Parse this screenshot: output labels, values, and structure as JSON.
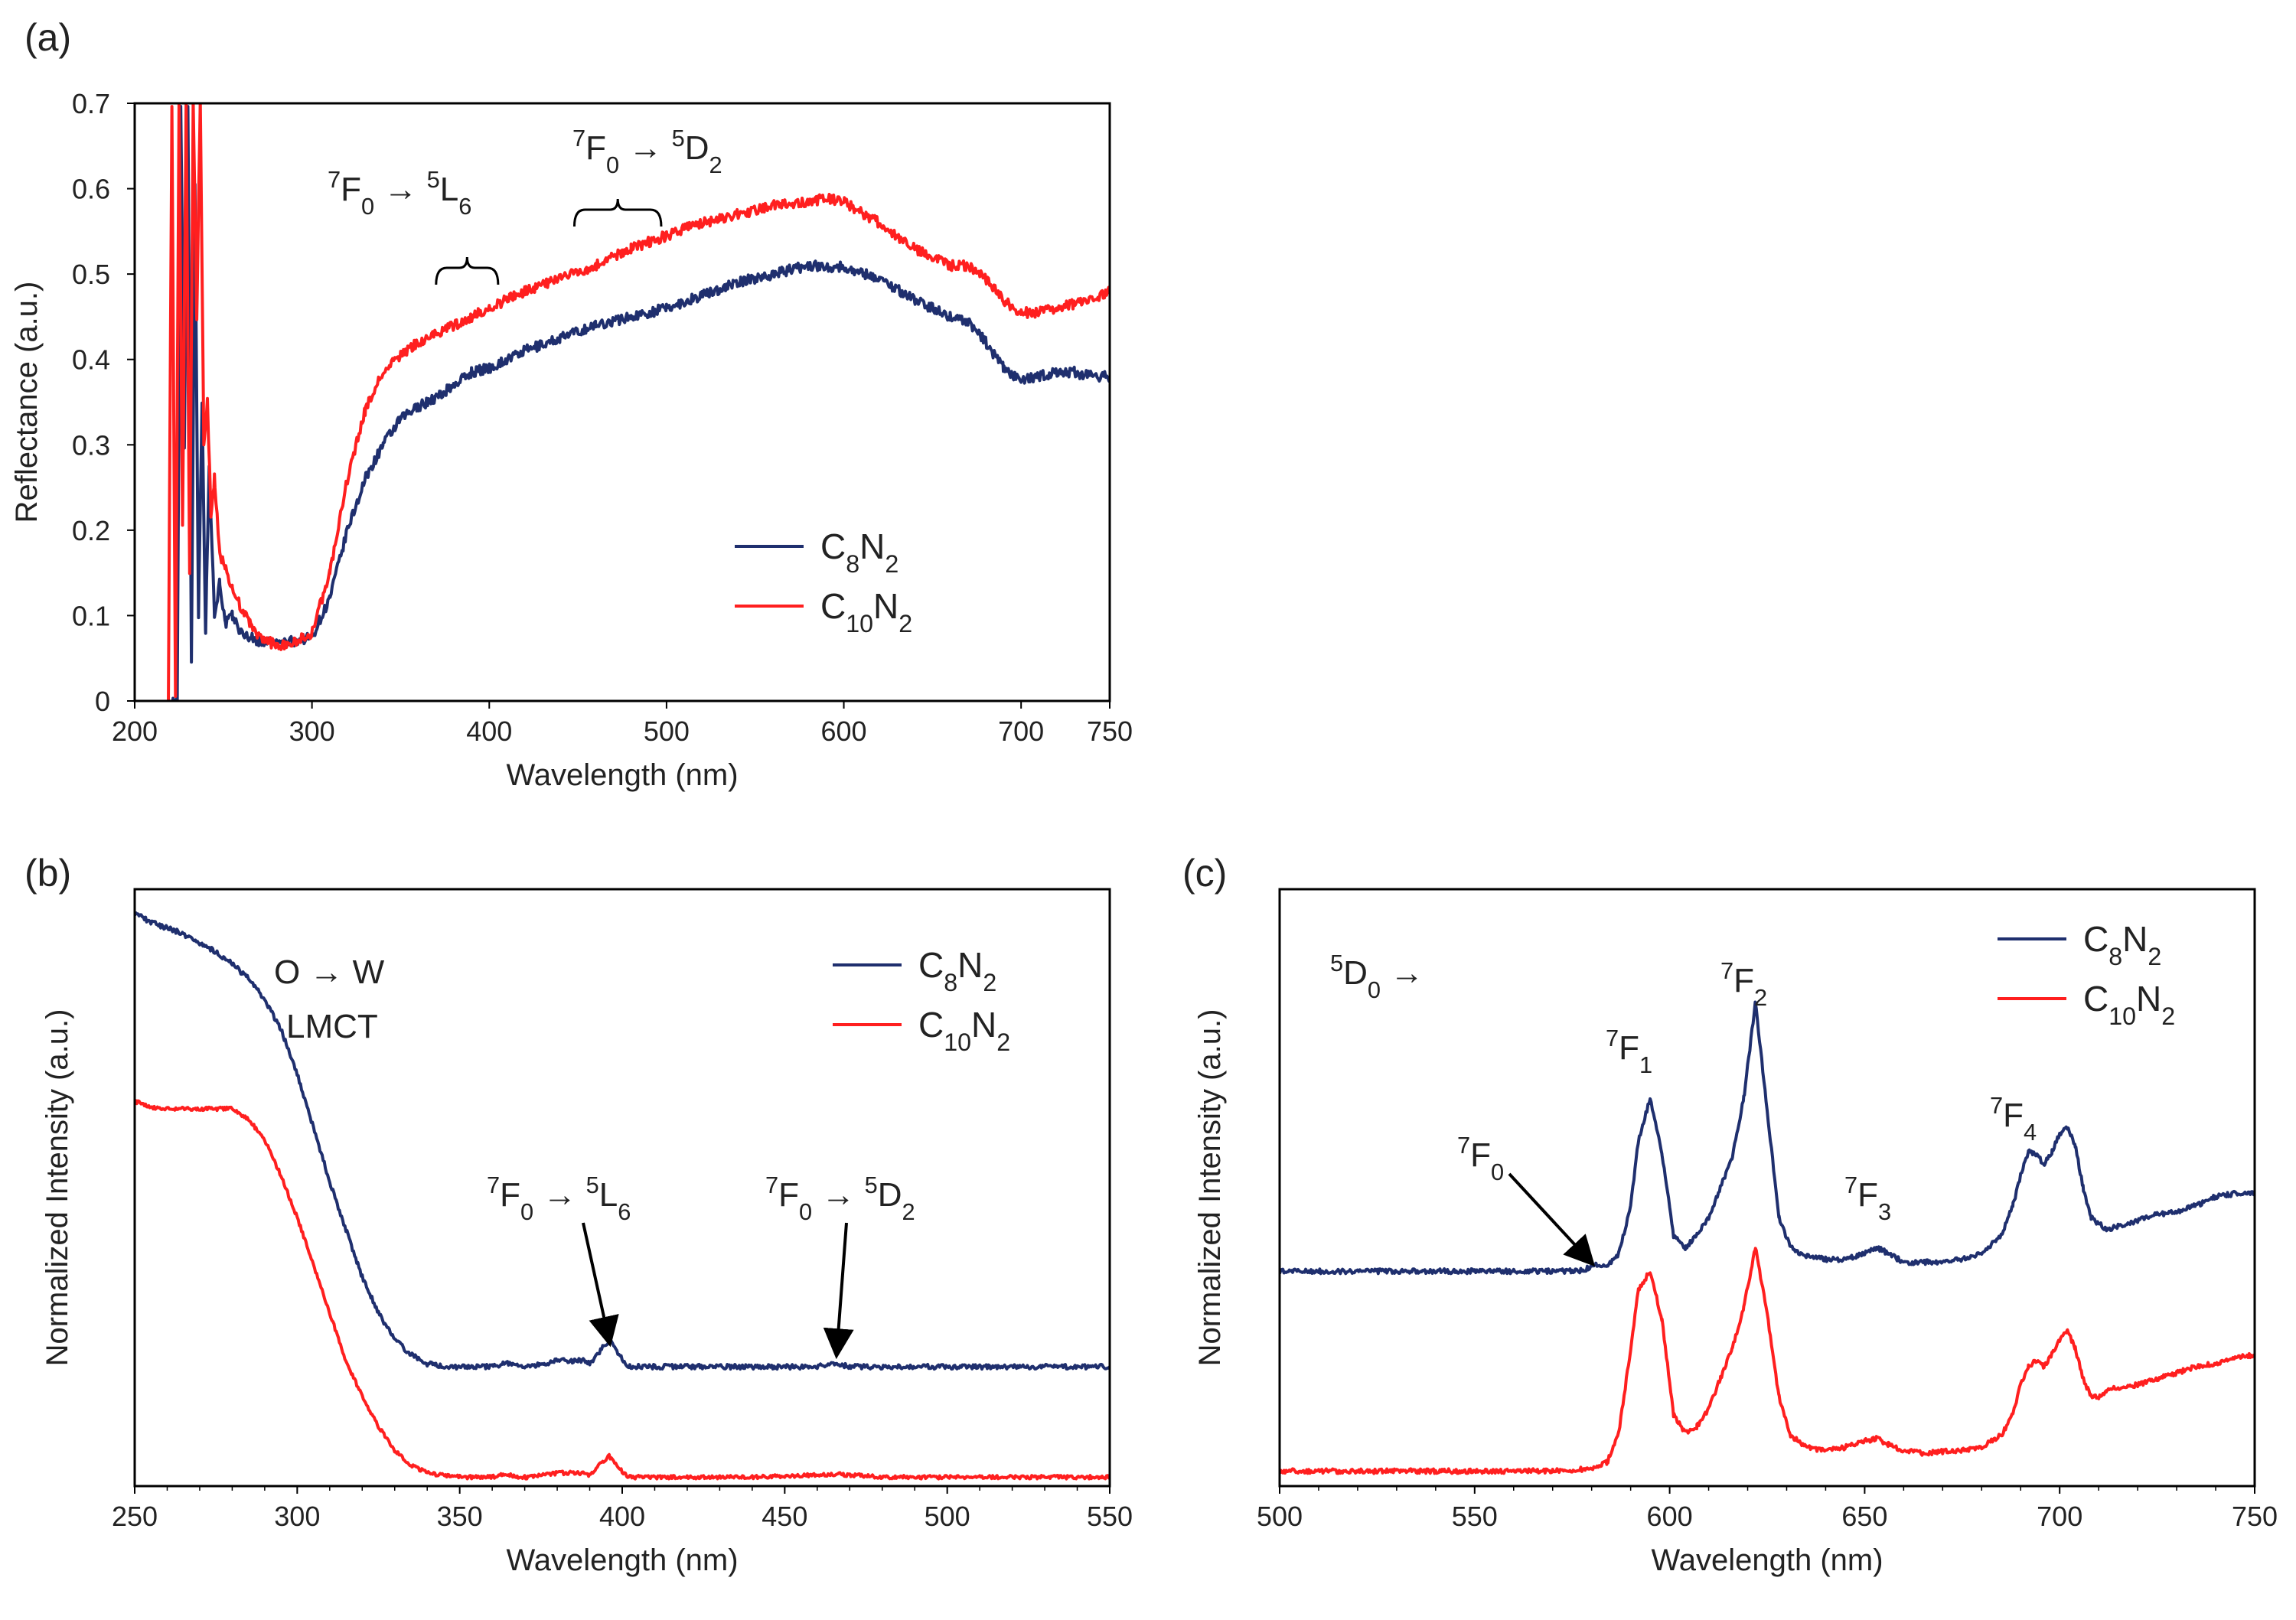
{
  "colors": {
    "c8n2": "#1f2f6e",
    "c10n2": "#ff1f1f"
  },
  "panels": {
    "a": {
      "label": "(a)"
    },
    "b": {
      "label": "(b)"
    },
    "c": {
      "label": "(c)"
    }
  },
  "chart_data": [
    {
      "id": "a",
      "type": "line",
      "xlabel": "Wavelength (nm)",
      "ylabel": "Reflectance (a.u.)",
      "xlim": [
        200,
        750
      ],
      "ylim": [
        0,
        0.7
      ],
      "xticks": [
        200,
        300,
        400,
        500,
        600,
        700,
        750
      ],
      "yticks": [
        0,
        0.1,
        0.2,
        0.3,
        0.4,
        0.5,
        0.6,
        0.7
      ],
      "ytick_labels": [
        "0",
        "0.1",
        "0.2",
        "0.3",
        "0.4",
        "0.5",
        "0.6",
        "0.7"
      ],
      "legend": {
        "position": "bottom-right",
        "entries": [
          {
            "base": "C",
            "sub1": "8",
            "mid": "N",
            "sub2": "2",
            "color": "#1f2f6e"
          },
          {
            "base": "C",
            "sub1": "10",
            "mid": "N",
            "sub2": "2",
            "color": "#ff1f1f"
          }
        ]
      },
      "annotations": [
        {
          "sup1": "7",
          "t1": "F",
          "sub1": "0",
          "arrow": " → ",
          "sup2": "5",
          "t2": "L",
          "sub2": "6",
          "range": [
            370,
            405
          ]
        },
        {
          "sup1": "7",
          "t1": "F",
          "sub1": "0",
          "arrow": " → ",
          "sup2": "5",
          "t2": "D",
          "sub2": "2",
          "range": [
            448,
            497
          ]
        }
      ],
      "series": [
        {
          "name": "C8N2",
          "color": "#1f2f6e",
          "noise": 0.006,
          "x": [
            221,
            224,
            226,
            228,
            230,
            232,
            234,
            236,
            238,
            240,
            242,
            245,
            248,
            251,
            255,
            260,
            265,
            270,
            280,
            290,
            300,
            310,
            320,
            330,
            340,
            350,
            360,
            370,
            380,
            390,
            400,
            420,
            440,
            460,
            480,
            500,
            520,
            540,
            560,
            580,
            600,
            620,
            640,
            660,
            670,
            680,
            690,
            700,
            710,
            720,
            730,
            740,
            750
          ],
          "y": [
            0.0,
            0.0,
            0.7,
            0.3,
            0.7,
            0.05,
            0.6,
            0.1,
            0.35,
            0.08,
            0.28,
            0.1,
            0.14,
            0.09,
            0.1,
            0.08,
            0.075,
            0.07,
            0.068,
            0.07,
            0.075,
            0.12,
            0.2,
            0.26,
            0.3,
            0.33,
            0.345,
            0.355,
            0.37,
            0.385,
            0.39,
            0.41,
            0.425,
            0.44,
            0.45,
            0.46,
            0.475,
            0.49,
            0.5,
            0.51,
            0.508,
            0.495,
            0.47,
            0.45,
            0.445,
            0.42,
            0.39,
            0.375,
            0.38,
            0.385,
            0.385,
            0.38,
            0.38
          ]
        },
        {
          "name": "C10N2",
          "color": "#ff1f1f",
          "noise": 0.006,
          "x": [
            219,
            221,
            223,
            225,
            227,
            229,
            231,
            233,
            235,
            237,
            239,
            241,
            243,
            245,
            248,
            251,
            255,
            260,
            265,
            270,
            280,
            290,
            300,
            310,
            320,
            330,
            340,
            350,
            360,
            370,
            380,
            390,
            400,
            420,
            440,
            460,
            480,
            500,
            520,
            540,
            560,
            580,
            590,
            600,
            620,
            640,
            660,
            670,
            680,
            690,
            700,
            710,
            720,
            730,
            740,
            750
          ],
          "y": [
            0.0,
            0.7,
            0.0,
            0.7,
            0.2,
            0.7,
            0.15,
            0.7,
            0.45,
            0.7,
            0.3,
            0.35,
            0.22,
            0.26,
            0.17,
            0.16,
            0.13,
            0.11,
            0.09,
            0.075,
            0.065,
            0.068,
            0.08,
            0.15,
            0.26,
            0.34,
            0.385,
            0.405,
            0.42,
            0.43,
            0.44,
            0.45,
            0.46,
            0.48,
            0.495,
            0.51,
            0.53,
            0.545,
            0.56,
            0.57,
            0.58,
            0.585,
            0.588,
            0.585,
            0.56,
            0.53,
            0.51,
            0.51,
            0.495,
            0.47,
            0.455,
            0.455,
            0.46,
            0.465,
            0.47,
            0.48
          ]
        }
      ]
    },
    {
      "id": "b",
      "type": "line",
      "xlabel": "Wavelength (nm)",
      "ylabel": "Normalized  Intensity (a.u.)",
      "xlim": [
        250,
        550
      ],
      "ylim": [
        0,
        1
      ],
      "xticks": [
        250,
        300,
        350,
        400,
        450,
        500,
        550
      ],
      "legend": {
        "position": "top-right",
        "entries": [
          {
            "base": "C",
            "sub1": "8",
            "mid": "N",
            "sub2": "2",
            "color": "#1f2f6e"
          },
          {
            "base": "C",
            "sub1": "10",
            "mid": "N",
            "sub2": "2",
            "color": "#ff1f1f"
          }
        ]
      },
      "annotations": [
        {
          "text": "O → W"
        },
        {
          "text": "LMCT"
        },
        {
          "sup1": "7",
          "t1": "F",
          "sub1": "0",
          "arrow": " → ",
          "sup2": "5",
          "t2": "L",
          "sub2": "6",
          "arrow_to": [
            396,
            0.23
          ]
        },
        {
          "sup1": "7",
          "t1": "F",
          "sub1": "0",
          "arrow": " → ",
          "sup2": "5",
          "t2": "D",
          "sub2": "2",
          "arrow_to": [
            466,
            0.21
          ]
        }
      ],
      "series": [
        {
          "name": "C8N2",
          "color": "#1f2f6e",
          "noise": 0.004,
          "x": [
            250,
            255,
            260,
            265,
            270,
            275,
            280,
            285,
            290,
            295,
            300,
            305,
            310,
            315,
            320,
            325,
            330,
            335,
            340,
            345,
            350,
            360,
            364,
            368,
            372,
            380,
            385,
            388,
            390,
            393,
            396,
            399,
            402,
            405,
            410,
            420,
            430,
            440,
            460,
            466,
            470,
            480,
            500,
            520,
            540,
            550
          ],
          "y": [
            0.96,
            0.945,
            0.935,
            0.925,
            0.91,
            0.895,
            0.875,
            0.85,
            0.815,
            0.765,
            0.69,
            0.6,
            0.51,
            0.43,
            0.35,
            0.29,
            0.245,
            0.22,
            0.205,
            0.2,
            0.2,
            0.2,
            0.206,
            0.2,
            0.2,
            0.21,
            0.21,
            0.21,
            0.205,
            0.225,
            0.245,
            0.22,
            0.2,
            0.2,
            0.2,
            0.2,
            0.2,
            0.2,
            0.2,
            0.205,
            0.2,
            0.2,
            0.2,
            0.2,
            0.2,
            0.2
          ]
        },
        {
          "name": "C10N2",
          "color": "#ff1f1f",
          "noise": 0.003,
          "x": [
            250,
            255,
            260,
            265,
            270,
            275,
            280,
            285,
            290,
            295,
            300,
            305,
            310,
            315,
            320,
            325,
            330,
            335,
            340,
            345,
            350,
            360,
            364,
            368,
            372,
            380,
            385,
            388,
            390,
            393,
            396,
            399,
            402,
            405,
            410,
            420,
            440,
            466,
            480,
            500,
            520,
            540,
            550
          ],
          "y": [
            0.645,
            0.635,
            0.632,
            0.632,
            0.632,
            0.632,
            0.632,
            0.615,
            0.58,
            0.52,
            0.45,
            0.37,
            0.29,
            0.21,
            0.15,
            0.1,
            0.06,
            0.035,
            0.022,
            0.018,
            0.015,
            0.015,
            0.02,
            0.015,
            0.015,
            0.022,
            0.022,
            0.022,
            0.018,
            0.035,
            0.05,
            0.03,
            0.015,
            0.015,
            0.015,
            0.015,
            0.015,
            0.02,
            0.015,
            0.015,
            0.015,
            0.015,
            0.015
          ]
        }
      ]
    },
    {
      "id": "c",
      "type": "line",
      "xlabel": "Wavelength (nm)",
      "ylabel": "Normalized  Intensity (a.u.)",
      "xlim": [
        500,
        750
      ],
      "ylim": [
        0,
        1
      ],
      "xticks": [
        500,
        550,
        600,
        650,
        700,
        750
      ],
      "legend": {
        "position": "top-right",
        "entries": [
          {
            "base": "C",
            "sub1": "8",
            "mid": "N",
            "sub2": "2",
            "color": "#1f2f6e"
          },
          {
            "base": "C",
            "sub1": "10",
            "mid": "N",
            "sub2": "2",
            "color": "#ff1f1f"
          }
        ]
      },
      "annotations": [
        {
          "sup1": "5",
          "t1": "D",
          "sub1": "0",
          "tail": " →"
        },
        {
          "sup1": "7",
          "t1": "F",
          "sub1": "0",
          "arrow_to": [
            581,
            0.365
          ]
        },
        {
          "sup1": "7",
          "t1": "F",
          "sub1": "1"
        },
        {
          "sup1": "7",
          "t1": "F",
          "sub1": "2"
        },
        {
          "sup1": "7",
          "t1": "F",
          "sub1": "3"
        },
        {
          "sup1": "7",
          "t1": "F",
          "sub1": "4"
        }
      ],
      "series": [
        {
          "name": "C8N2",
          "color": "#1f2f6e",
          "noise": 0.004,
          "x": [
            500,
            520,
            540,
            560,
            575,
            578,
            581,
            584,
            587,
            590,
            592,
            595,
            598,
            601,
            604,
            607,
            610,
            613,
            616,
            619,
            622,
            625,
            628,
            631,
            635,
            640,
            645,
            650,
            653,
            656,
            660,
            665,
            670,
            675,
            680,
            685,
            688,
            690,
            692,
            694,
            696,
            698,
            700,
            702,
            704,
            706,
            708,
            710,
            712,
            715,
            720,
            725,
            730,
            735,
            740,
            745,
            750
          ],
          "y": [
            0.36,
            0.36,
            0.36,
            0.36,
            0.36,
            0.362,
            0.37,
            0.37,
            0.39,
            0.47,
            0.58,
            0.65,
            0.56,
            0.42,
            0.4,
            0.42,
            0.45,
            0.5,
            0.55,
            0.65,
            0.81,
            0.63,
            0.45,
            0.4,
            0.385,
            0.38,
            0.38,
            0.39,
            0.4,
            0.39,
            0.375,
            0.375,
            0.375,
            0.38,
            0.39,
            0.42,
            0.47,
            0.52,
            0.56,
            0.555,
            0.54,
            0.56,
            0.59,
            0.6,
            0.57,
            0.5,
            0.45,
            0.44,
            0.43,
            0.435,
            0.445,
            0.455,
            0.46,
            0.47,
            0.485,
            0.49,
            0.49
          ]
        },
        {
          "name": "C10N2",
          "color": "#ff1f1f",
          "noise": 0.004,
          "x": [
            500,
            520,
            540,
            560,
            575,
            580,
            584,
            587,
            590,
            592,
            595,
            598,
            601,
            604,
            607,
            610,
            613,
            616,
            619,
            622,
            625,
            628,
            631,
            635,
            640,
            645,
            650,
            653,
            656,
            660,
            665,
            670,
            675,
            680,
            685,
            688,
            690,
            692,
            694,
            696,
            698,
            700,
            702,
            704,
            706,
            708,
            710,
            712,
            715,
            720,
            725,
            730,
            735,
            740,
            745,
            750
          ],
          "y": [
            0.025,
            0.025,
            0.025,
            0.025,
            0.026,
            0.03,
            0.04,
            0.09,
            0.23,
            0.33,
            0.36,
            0.28,
            0.12,
            0.09,
            0.1,
            0.13,
            0.18,
            0.23,
            0.3,
            0.4,
            0.29,
            0.15,
            0.085,
            0.065,
            0.06,
            0.065,
            0.075,
            0.08,
            0.07,
            0.06,
            0.055,
            0.058,
            0.06,
            0.065,
            0.085,
            0.12,
            0.17,
            0.2,
            0.21,
            0.2,
            0.22,
            0.245,
            0.26,
            0.23,
            0.18,
            0.15,
            0.15,
            0.16,
            0.165,
            0.17,
            0.18,
            0.19,
            0.2,
            0.205,
            0.215,
            0.22
          ]
        }
      ]
    }
  ]
}
